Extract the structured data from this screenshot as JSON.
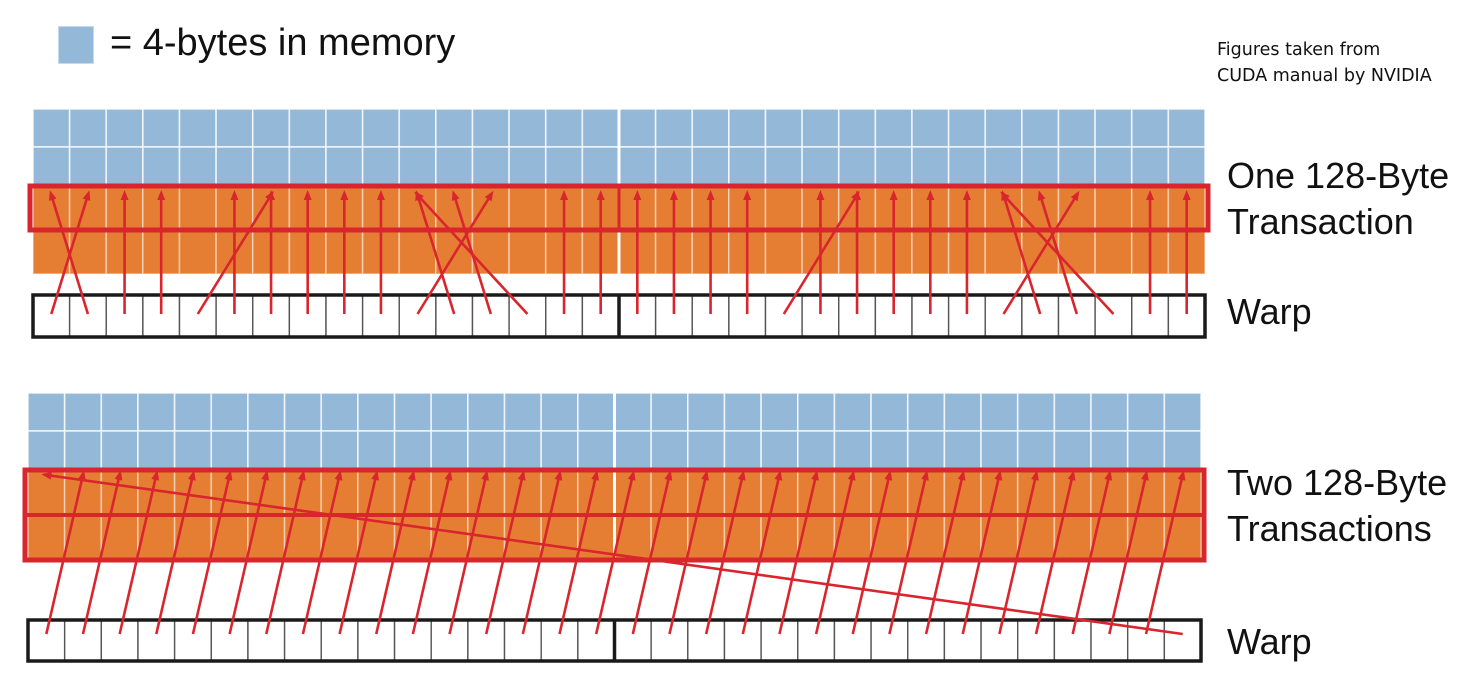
{
  "legend": {
    "swatch_color": "#94b8d8",
    "text": "= 4-bytes in memory"
  },
  "credit": {
    "line1": "Figures taken from",
    "line2": "CUDA manual by NVIDIA"
  },
  "colors": {
    "memory": "#94b8d8",
    "transaction": "#e57e33",
    "highlight": "#d9252d",
    "arrow": "#d9252d",
    "warp_border": "#1a1a1a"
  },
  "panels": [
    {
      "transaction_label": {
        "line1": "One 128-Byte",
        "line2": "Transaction"
      },
      "warp_label": "Warp",
      "mapping": [
        1,
        0,
        2,
        3,
        6,
        5,
        6,
        7,
        8,
        9,
        12,
        10,
        11,
        10,
        14,
        15,
        16,
        17,
        18,
        19,
        22,
        21,
        22,
        23,
        24,
        25,
        28,
        26,
        27,
        26,
        30,
        31
      ],
      "highlight_rows": 1
    },
    {
      "transaction_label": {
        "line1": "Two 128-Byte",
        "line2": "Transactions"
      },
      "warp_label": "Warp",
      "mapping": [
        1,
        2,
        3,
        4,
        5,
        6,
        7,
        8,
        9,
        10,
        11,
        12,
        13,
        14,
        15,
        16,
        17,
        18,
        19,
        20,
        21,
        22,
        23,
        24,
        25,
        26,
        27,
        28,
        29,
        30,
        31,
        0
      ],
      "highlight_rows": 2
    }
  ]
}
